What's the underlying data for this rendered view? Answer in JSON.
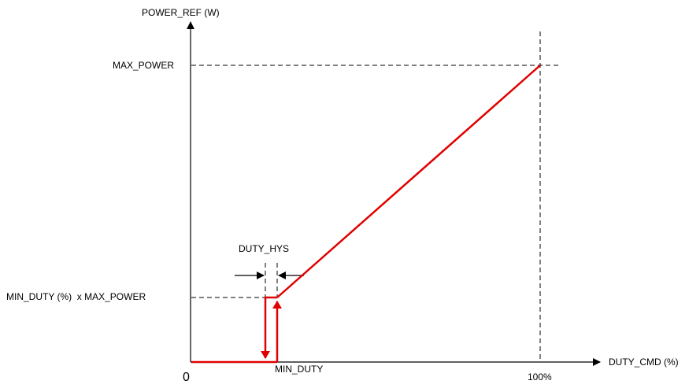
{
  "y_axis": {
    "label": "POWER_REF (W)"
  },
  "x_axis": {
    "label": "DUTY_CMD (%)",
    "origin": "0",
    "end": "100%"
  },
  "levels": {
    "max": "MAX_POWER",
    "min": "MIN_DUTY (%)  x MAX_POWER"
  },
  "markers": {
    "min_duty": "MIN_DUTY",
    "hysteresis": "DUTY_HYS"
  }
}
